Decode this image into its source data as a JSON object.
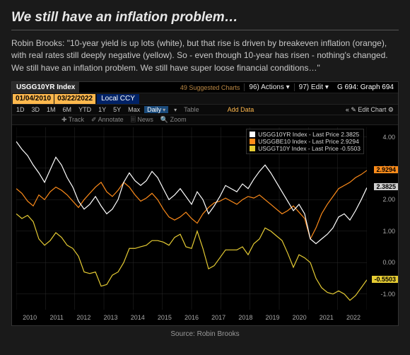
{
  "title": "We still have an inflation problem…",
  "quote": "Robin Brooks: \"10-year yield is up lots (white), but that rise is driven by breakeven inflation (orange), with real rates still deeply negative (yellow). So - even though 10-year has risen - nothing's changed. We still have an inflation problem. We still have super loose financial conditions…\"",
  "source": "Source: Robin Brooks",
  "terminal": {
    "ticker": "USGG10YR Index",
    "suggested": "49 Suggested Charts",
    "actions": "96) Actions ▾",
    "edit": "97) Edit ▾",
    "graph_label": "G 694: Graph 694",
    "date_from": "01/04/2010",
    "date_to": "03/22/2022",
    "ccy": "Local CCY",
    "tf_buttons": [
      "1D",
      "3D",
      "1M",
      "6M",
      "YTD",
      "1Y",
      "5Y",
      "Max"
    ],
    "tf_daily": "Daily",
    "tf_table": "Table",
    "add_data": "Add Data",
    "edit_chart": "« ✎ Edit Chart ⚙",
    "tools": [
      "✚ Track",
      "✐ Annotate",
      "🗏 News",
      "🔍 Zoom"
    ]
  },
  "legend": [
    {
      "color": "#ffffff",
      "label": "USGG10YR Index - Last Price 2.3825"
    },
    {
      "color": "#ff8c1a",
      "label": "USGGBE10 Index - Last Price 2.9294"
    },
    {
      "color": "#e6cc33",
      "label": "USGGT10Y Index - Last Price -0.5503"
    }
  ],
  "chart": {
    "bg": "#000000",
    "grid_color": "#2a2a2a",
    "ylim": [
      -1.5,
      4.3
    ],
    "yticks": [
      -1.0,
      0.0,
      1.0,
      2.0,
      3.0,
      4.0
    ],
    "years": [
      "2010",
      "2011",
      "2012",
      "2013",
      "2014",
      "2015",
      "2016",
      "2017",
      "2018",
      "2019",
      "2020",
      "2021",
      "2022"
    ],
    "price_tags": [
      {
        "value": "2.9294",
        "bg": "#ff8c1a",
        "y": 2.9294
      },
      {
        "value": "2.3825",
        "bg": "#cfcfcf",
        "y": 2.3825
      },
      {
        "value": "-0.5503",
        "bg": "#e6cc33",
        "y": -0.5503
      }
    ],
    "series": {
      "white": {
        "color": "#ffffff",
        "points": [
          3.85,
          3.6,
          3.4,
          3.1,
          2.85,
          2.55,
          2.95,
          3.35,
          3.1,
          2.7,
          2.4,
          1.95,
          1.7,
          1.85,
          2.1,
          1.8,
          1.55,
          1.7,
          2.0,
          2.55,
          2.85,
          2.6,
          2.45,
          2.6,
          2.9,
          2.7,
          2.35,
          2.0,
          2.15,
          2.35,
          2.1,
          1.85,
          2.25,
          2.0,
          1.55,
          1.8,
          2.1,
          2.45,
          2.35,
          2.25,
          2.5,
          2.35,
          2.65,
          2.9,
          3.1,
          2.85,
          2.55,
          2.25,
          1.95,
          1.65,
          1.85,
          1.55,
          0.75,
          0.6,
          0.75,
          0.9,
          1.1,
          1.45,
          1.55,
          1.35,
          1.65,
          2.0,
          2.38
        ]
      },
      "orange": {
        "color": "#ff8c1a",
        "points": [
          2.35,
          2.2,
          1.95,
          1.8,
          2.15,
          2.0,
          2.25,
          2.4,
          2.3,
          2.15,
          1.95,
          1.75,
          2.0,
          2.2,
          2.4,
          2.55,
          2.25,
          2.1,
          2.3,
          2.55,
          2.4,
          2.15,
          1.95,
          2.05,
          2.2,
          2.0,
          1.7,
          1.45,
          1.35,
          1.45,
          1.6,
          1.4,
          1.25,
          1.55,
          1.75,
          1.9,
          1.95,
          2.05,
          1.95,
          1.85,
          2.0,
          2.1,
          2.05,
          2.15,
          2.0,
          1.85,
          1.7,
          1.55,
          1.65,
          1.8,
          1.6,
          1.4,
          0.75,
          1.1,
          1.55,
          1.85,
          2.1,
          2.35,
          2.45,
          2.55,
          2.7,
          2.8,
          2.93
        ]
      },
      "yellow": {
        "color": "#e6cc33",
        "points": [
          1.55,
          1.4,
          1.5,
          1.3,
          0.75,
          0.55,
          0.7,
          0.95,
          0.8,
          0.55,
          0.45,
          0.2,
          -0.3,
          -0.35,
          -0.3,
          -0.75,
          -0.7,
          -0.4,
          -0.3,
          0.0,
          0.45,
          0.45,
          0.5,
          0.55,
          0.7,
          0.7,
          0.65,
          0.55,
          0.8,
          0.9,
          0.5,
          0.45,
          1.0,
          0.45,
          -0.2,
          -0.1,
          0.15,
          0.4,
          0.4,
          0.4,
          0.5,
          0.25,
          0.6,
          0.75,
          1.1,
          1.0,
          0.85,
          0.7,
          0.3,
          -0.15,
          0.25,
          0.15,
          0.0,
          -0.5,
          -0.8,
          -0.95,
          -1.0,
          -0.9,
          -1.0,
          -1.2,
          -1.05,
          -0.8,
          -0.55
        ]
      }
    }
  }
}
